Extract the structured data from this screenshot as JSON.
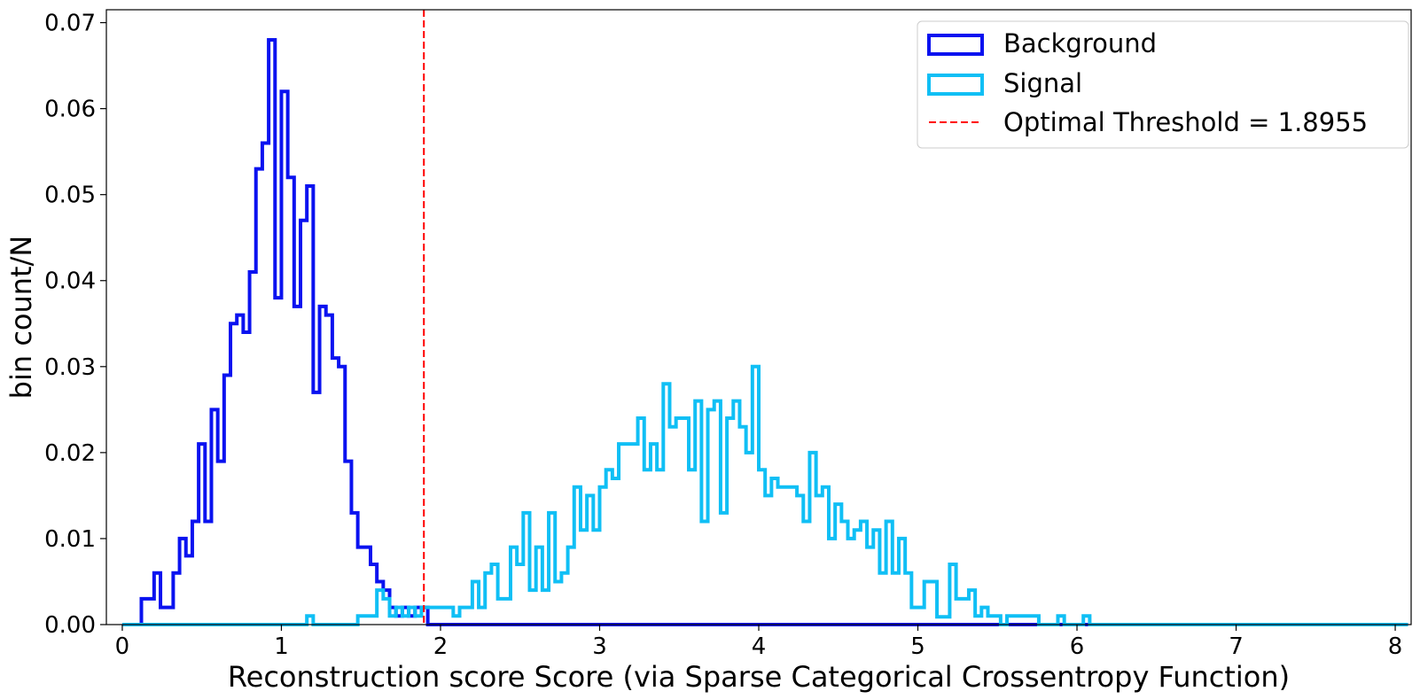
{
  "chart_data": {
    "type": "histogram",
    "title": "",
    "xlabel": "Reconstruction score Score (via Sparse Categorical Crossentropy Function)",
    "ylabel": "bin count/N",
    "xlim": [
      -0.1,
      8.1
    ],
    "ylim": [
      0,
      0.0715
    ],
    "xticks": [
      0,
      1,
      2,
      3,
      4,
      5,
      6,
      7,
      8
    ],
    "xtick_labels": [
      "0",
      "1",
      "2",
      "3",
      "4",
      "5",
      "6",
      "7",
      "8"
    ],
    "yticks": [
      0,
      0.01,
      0.02,
      0.03,
      0.04,
      0.05,
      0.06,
      0.07
    ],
    "ytick_labels": [
      "0.00",
      "0.01",
      "0.02",
      "0.03",
      "0.04",
      "0.05",
      "0.06",
      "0.07"
    ],
    "grid": false,
    "legend_position": "top-right",
    "bin_edges": {
      "start": 0.0,
      "step": 0.04,
      "count": 202
    },
    "series": [
      {
        "name": "Background",
        "color": "#0a12f0",
        "values": [
          0,
          0,
          0,
          0.003,
          0.003,
          0.006,
          0.002,
          0.002,
          0.006,
          0.01,
          0.008,
          0.012,
          0.021,
          0.012,
          0.025,
          0.019,
          0.029,
          0.035,
          0.036,
          0.034,
          0.041,
          0.053,
          0.056,
          0.068,
          0.038,
          0.062,
          0.052,
          0.037,
          0.047,
          0.051,
          0.027,
          0.037,
          0.036,
          0.031,
          0.03,
          0.019,
          0.013,
          0.009,
          0.009,
          0.007,
          0.005,
          0.004,
          0.002,
          0.001,
          0.002,
          0.001,
          0.002,
          0.002
        ]
      },
      {
        "name": "Signal",
        "color": "#10bff5",
        "values": [
          0,
          0,
          0,
          0,
          0,
          0,
          0,
          0,
          0,
          0,
          0,
          0,
          0,
          0,
          0,
          0,
          0,
          0,
          0,
          0,
          0,
          0,
          0,
          0,
          0,
          0,
          0,
          0,
          0,
          0.001,
          0,
          0,
          0,
          0,
          0,
          0,
          0,
          0.001,
          0.001,
          0.001,
          0.004,
          0.003,
          0.001,
          0.002,
          0.001,
          0.002,
          0.001,
          0.002,
          0.002,
          0.002,
          0.002,
          0.002,
          0.001,
          0.002,
          0.002,
          0.005,
          0.002,
          0.006,
          0.007,
          0.003,
          0.003,
          0.009,
          0.007,
          0.013,
          0.004,
          0.009,
          0.004,
          0.013,
          0.005,
          0.006,
          0.009,
          0.016,
          0.011,
          0.015,
          0.011,
          0.016,
          0.018,
          0.017,
          0.021,
          0.021,
          0.021,
          0.024,
          0.018,
          0.021,
          0.018,
          0.028,
          0.023,
          0.024,
          0.024,
          0.018,
          0.026,
          0.012,
          0.025,
          0.026,
          0.013,
          0.024,
          0.026,
          0.023,
          0.02,
          0.03,
          0.018,
          0.015,
          0.017,
          0.016,
          0.016,
          0.016,
          0.015,
          0.012,
          0.02,
          0.015,
          0.016,
          0.01,
          0.014,
          0.012,
          0.01,
          0.011,
          0.012,
          0.009,
          0.011,
          0.006,
          0.012,
          0.006,
          0.01,
          0.006,
          0.002,
          0.002,
          0.005,
          0.005,
          0.0009,
          0.0009,
          0.007,
          0.003,
          0.003,
          0.004,
          0.001,
          0.002,
          0.001,
          0.001,
          0,
          0.001,
          0.001,
          0.001,
          0.001,
          0.001,
          0,
          0,
          0,
          0.001,
          0,
          0,
          0,
          0.001,
          0,
          0,
          0,
          0,
          0,
          0,
          0,
          0,
          0,
          0,
          0,
          0,
          0,
          0,
          0,
          0,
          0,
          0,
          0,
          0,
          0,
          0,
          0,
          0,
          0,
          0,
          0,
          0,
          0,
          0,
          0,
          0,
          0,
          0,
          0,
          0,
          0,
          0,
          0,
          0,
          0,
          0,
          0,
          0,
          0,
          0,
          0,
          0,
          0,
          0,
          0,
          0,
          0,
          0,
          0
        ]
      }
    ],
    "threshold": {
      "label": "Optimal Threshold = 1.8955",
      "x": 1.8955,
      "color": "#ff0000",
      "style": "dashed"
    }
  }
}
